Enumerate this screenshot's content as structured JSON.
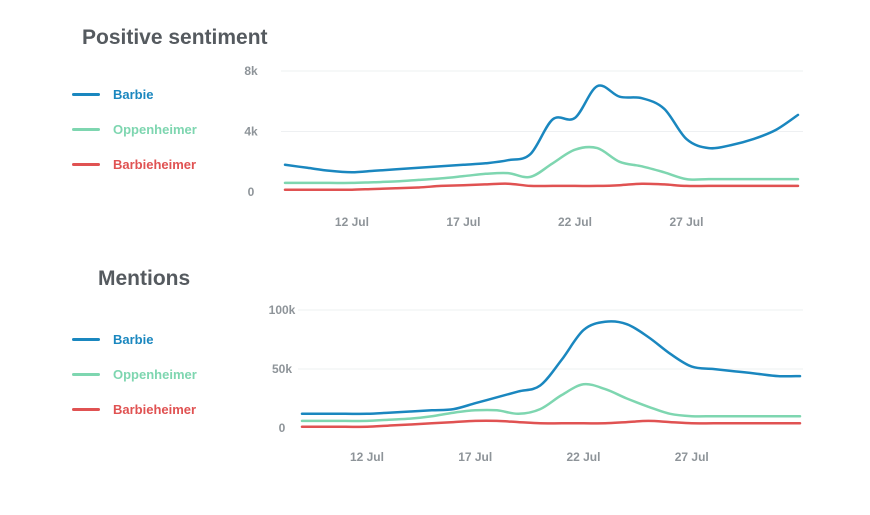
{
  "chart_data": [
    {
      "type": "line",
      "title": "Positive sentiment",
      "x": [
        "9 Jul",
        "10 Jul",
        "11 Jul",
        "12 Jul",
        "13 Jul",
        "14 Jul",
        "15 Jul",
        "16 Jul",
        "17 Jul",
        "18 Jul",
        "19 Jul",
        "20 Jul",
        "21 Jul",
        "22 Jul",
        "23 Jul",
        "24 Jul",
        "25 Jul",
        "26 Jul",
        "27 Jul",
        "28 Jul",
        "29 Jul",
        "30 Jul",
        "31 Jul",
        "1 Aug"
      ],
      "x_tick_labels": [
        "12 Jul",
        "17 Jul",
        "22 Jul",
        "27 Jul"
      ],
      "y_tick_labels": [
        "0",
        "4k",
        "8k"
      ],
      "ylim": [
        0,
        8000
      ],
      "legend_position": "left",
      "series": [
        {
          "name": "Barbie",
          "color": "#1a87bf",
          "values": [
            1800,
            1600,
            1400,
            1300,
            1400,
            1500,
            1600,
            1700,
            1800,
            1900,
            2100,
            2500,
            4800,
            4900,
            7000,
            6300,
            6200,
            5500,
            3500,
            2900,
            3100,
            3500,
            4100,
            5100
          ]
        },
        {
          "name": "Oppenheimer",
          "color": "#7ed6b0",
          "values": [
            600,
            600,
            600,
            600,
            650,
            700,
            800,
            900,
            1050,
            1200,
            1250,
            1000,
            1900,
            2800,
            2900,
            2000,
            1700,
            1300,
            850,
            850,
            850,
            850,
            850,
            850
          ]
        },
        {
          "name": "Barbieheimer",
          "color": "#e05252",
          "values": [
            150,
            150,
            150,
            150,
            200,
            250,
            300,
            400,
            450,
            500,
            550,
            400,
            400,
            400,
            400,
            450,
            550,
            500,
            400,
            400,
            400,
            400,
            400,
            400
          ]
        }
      ]
    },
    {
      "type": "line",
      "title": "Mentions",
      "x": [
        "9 Jul",
        "10 Jul",
        "11 Jul",
        "12 Jul",
        "13 Jul",
        "14 Jul",
        "15 Jul",
        "16 Jul",
        "17 Jul",
        "18 Jul",
        "19 Jul",
        "20 Jul",
        "21 Jul",
        "22 Jul",
        "23 Jul",
        "24 Jul",
        "25 Jul",
        "26 Jul",
        "27 Jul",
        "28 Jul",
        "29 Jul",
        "30 Jul",
        "31 Jul",
        "1 Aug"
      ],
      "x_tick_labels": [
        "12 Jul",
        "17 Jul",
        "22 Jul",
        "27 Jul"
      ],
      "y_tick_labels": [
        "0",
        "50k",
        "100k"
      ],
      "ylim": [
        0,
        100000
      ],
      "legend_position": "left",
      "series": [
        {
          "name": "Barbie",
          "color": "#1a87bf",
          "values": [
            12000,
            12000,
            12000,
            12000,
            13000,
            14000,
            15000,
            16000,
            21000,
            26000,
            31000,
            36000,
            58000,
            83000,
            90000,
            88000,
            77000,
            63000,
            52000,
            50000,
            48000,
            46000,
            44000,
            44000
          ]
        },
        {
          "name": "Oppenheimer",
          "color": "#7ed6b0",
          "values": [
            6000,
            6000,
            6000,
            6000,
            7000,
            8000,
            10000,
            13000,
            15000,
            15000,
            12000,
            16000,
            28000,
            37000,
            33000,
            25000,
            18000,
            12000,
            10000,
            10000,
            10000,
            10000,
            10000,
            10000
          ]
        },
        {
          "name": "Barbieheimer",
          "color": "#e05252",
          "values": [
            1000,
            1000,
            1000,
            1000,
            2000,
            3000,
            4000,
            5000,
            6000,
            6000,
            5000,
            4000,
            4000,
            4000,
            4000,
            5000,
            6000,
            5000,
            4000,
            4000,
            4000,
            4000,
            4000,
            4000
          ]
        }
      ]
    }
  ]
}
